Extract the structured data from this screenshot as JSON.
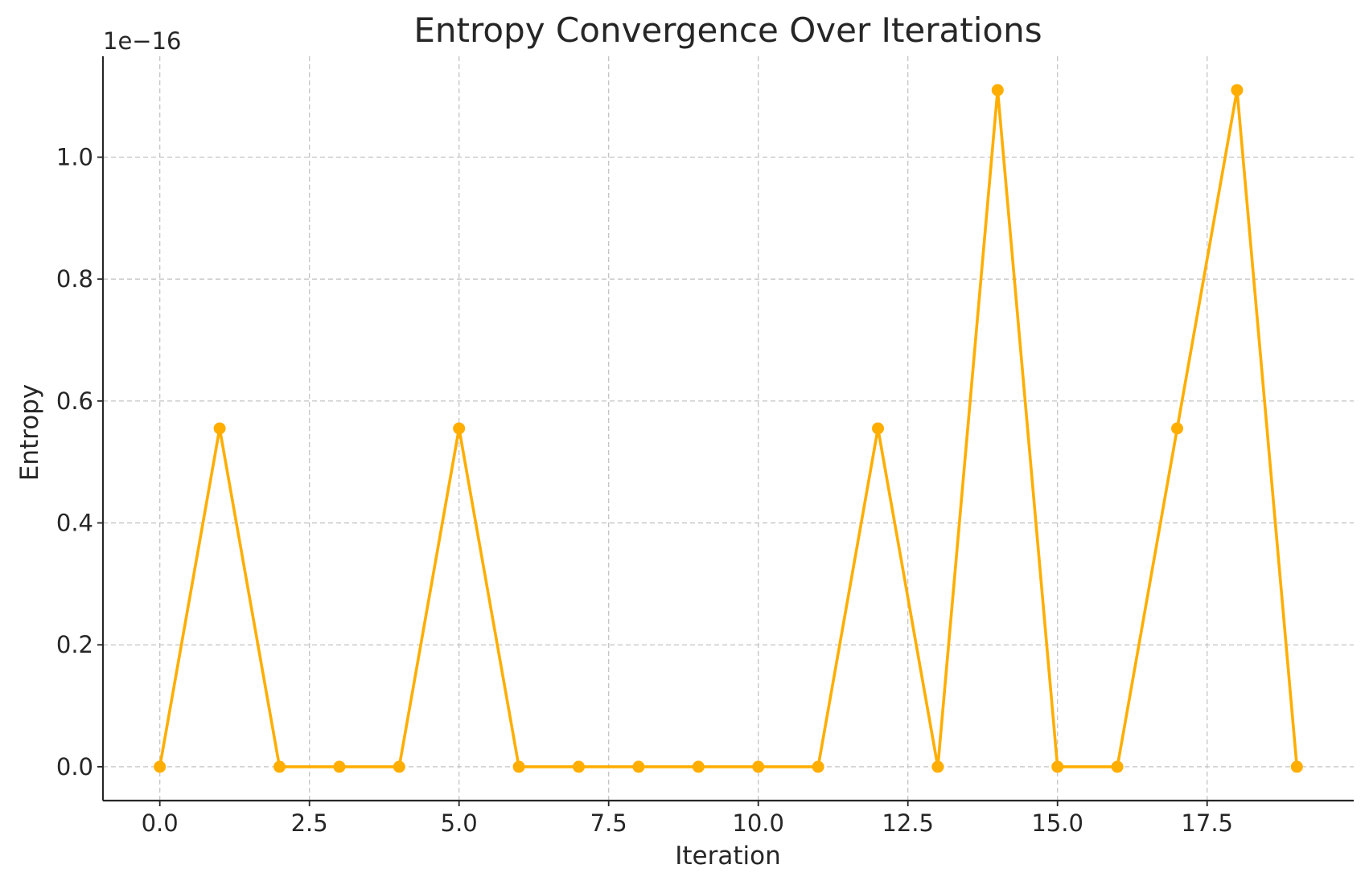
{
  "chart_data": {
    "type": "line",
    "title": "Entropy Convergence Over Iterations",
    "xlabel": "Iteration",
    "ylabel": "Entropy",
    "y_offset_label": "1e−16",
    "x_ticks": [
      0.0,
      2.5,
      5.0,
      7.5,
      10.0,
      12.5,
      15.0,
      17.5
    ],
    "x_tick_labels": [
      "0.0",
      "2.5",
      "5.0",
      "7.5",
      "10.0",
      "12.5",
      "15.0",
      "17.5"
    ],
    "y_ticks": [
      0.0,
      0.2,
      0.4,
      0.6,
      0.8,
      1.0
    ],
    "y_tick_labels": [
      "0.0",
      "0.2",
      "0.4",
      "0.6",
      "0.8",
      "1.0"
    ],
    "xlim": [
      -0.95,
      19.95
    ],
    "ylim": [
      -0.0555,
      1.1655
    ],
    "grid": true,
    "series": [
      {
        "name": "Entropy",
        "color": "#FFAE00",
        "marker": "circle",
        "x": [
          0,
          1,
          2,
          3,
          4,
          5,
          6,
          7,
          8,
          9,
          10,
          11,
          12,
          13,
          14,
          15,
          16,
          17,
          18,
          19
        ],
        "values": [
          0,
          0.555,
          0,
          0,
          0,
          0.555,
          0,
          0,
          0,
          0,
          0,
          0,
          0.555,
          0,
          1.11,
          0,
          0,
          0.555,
          1.11,
          0
        ]
      }
    ]
  }
}
